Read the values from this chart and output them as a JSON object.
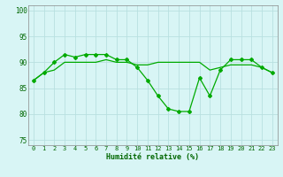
{
  "x": [
    0,
    1,
    2,
    3,
    4,
    5,
    6,
    7,
    8,
    9,
    10,
    11,
    12,
    13,
    14,
    15,
    16,
    17,
    18,
    19,
    20,
    21,
    22,
    23
  ],
  "line1": [
    86.5,
    88,
    90,
    91.5,
    91,
    91.5,
    91.5,
    91.5,
    90.5,
    90.5,
    89,
    86.5,
    83.5,
    81,
    80.5,
    80.5,
    87,
    83.5,
    88.5,
    90.5,
    90.5,
    90.5,
    89,
    88
  ],
  "line2": [
    86.5,
    88,
    88.5,
    90,
    90,
    90,
    90,
    90.5,
    90,
    90,
    89.5,
    89.5,
    90,
    90,
    90,
    90,
    90,
    88.5,
    89,
    89.5,
    89.5,
    89.5,
    89,
    88
  ],
  "line_color": "#00aa00",
  "bg_color": "#d8f5f5",
  "grid_color": "#b8e0e0",
  "xlabel": "Humidité relative (%)",
  "ylim": [
    74,
    101
  ],
  "yticks": [
    75,
    80,
    85,
    90,
    95,
    100
  ],
  "xlim": [
    -0.5,
    23.5
  ],
  "tick_color": "#006600",
  "label_color": "#006600"
}
